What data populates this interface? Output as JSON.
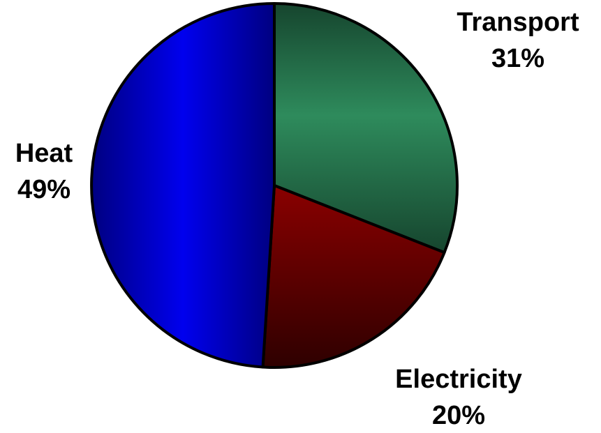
{
  "chart_data": {
    "type": "pie",
    "title": "",
    "start_angle_deg": 0,
    "direction": "clockwise",
    "slices": [
      {
        "label": "Transport",
        "value": 31,
        "value_label": "31%",
        "color": "#2e8b5c",
        "color_dark": "#16452e"
      },
      {
        "label": "Electricity",
        "value": 20,
        "value_label": "20%",
        "color": "#8a0000",
        "color_dark": "#2e0000"
      },
      {
        "label": "Heat",
        "value": 49,
        "value_label": "49%",
        "color": "#0000ee",
        "color_dark": "#000080"
      }
    ],
    "legend": "none",
    "labels": "outside"
  }
}
